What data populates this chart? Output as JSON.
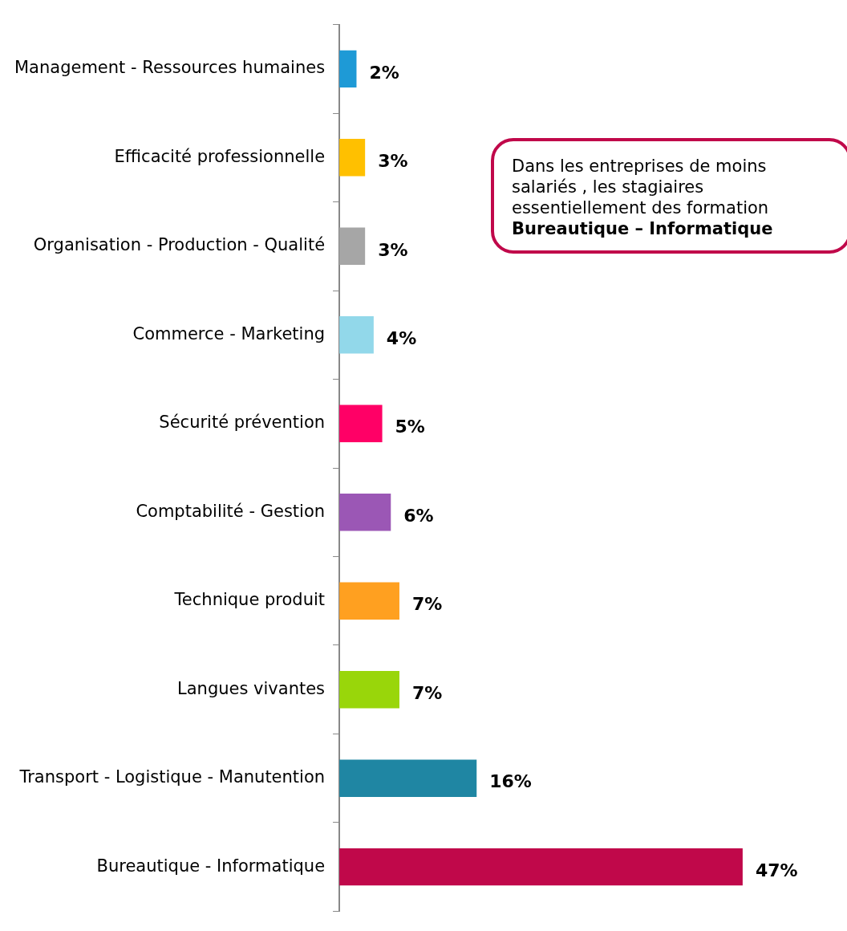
{
  "chart_data": {
    "type": "bar",
    "orientation": "horizontal",
    "categories": [
      "Management - Ressources humaines",
      "Efficacité professionnelle",
      "Organisation - Production - Qualité",
      "Commerce - Marketing",
      "Sécurité prévention",
      "Comptabilité - Gestion",
      "Technique produit",
      "Langues vivantes",
      "Transport - Logistique - Manutention",
      "Bureautique - Informatique"
    ],
    "values": [
      2,
      3,
      3,
      4,
      5,
      6,
      7,
      7,
      16,
      47
    ],
    "colors": [
      "#1e9ad6",
      "#ffc000",
      "#a6a6a6",
      "#92d8ea",
      "#ff0066",
      "#9b57b5",
      "#ffa020",
      "#99d60a",
      "#1f86a3",
      "#c0084a"
    ],
    "value_labels": [
      "2%",
      "3%",
      "3%",
      "4%",
      "5%",
      "6%",
      "7%",
      "7%",
      "16%",
      "47%"
    ],
    "annotations": [
      "Dans les entreprises de moins\nsalariés  ,  les  stagiaires\nessentiellement des formation",
      "Bureautique – Informatique"
    ]
  }
}
